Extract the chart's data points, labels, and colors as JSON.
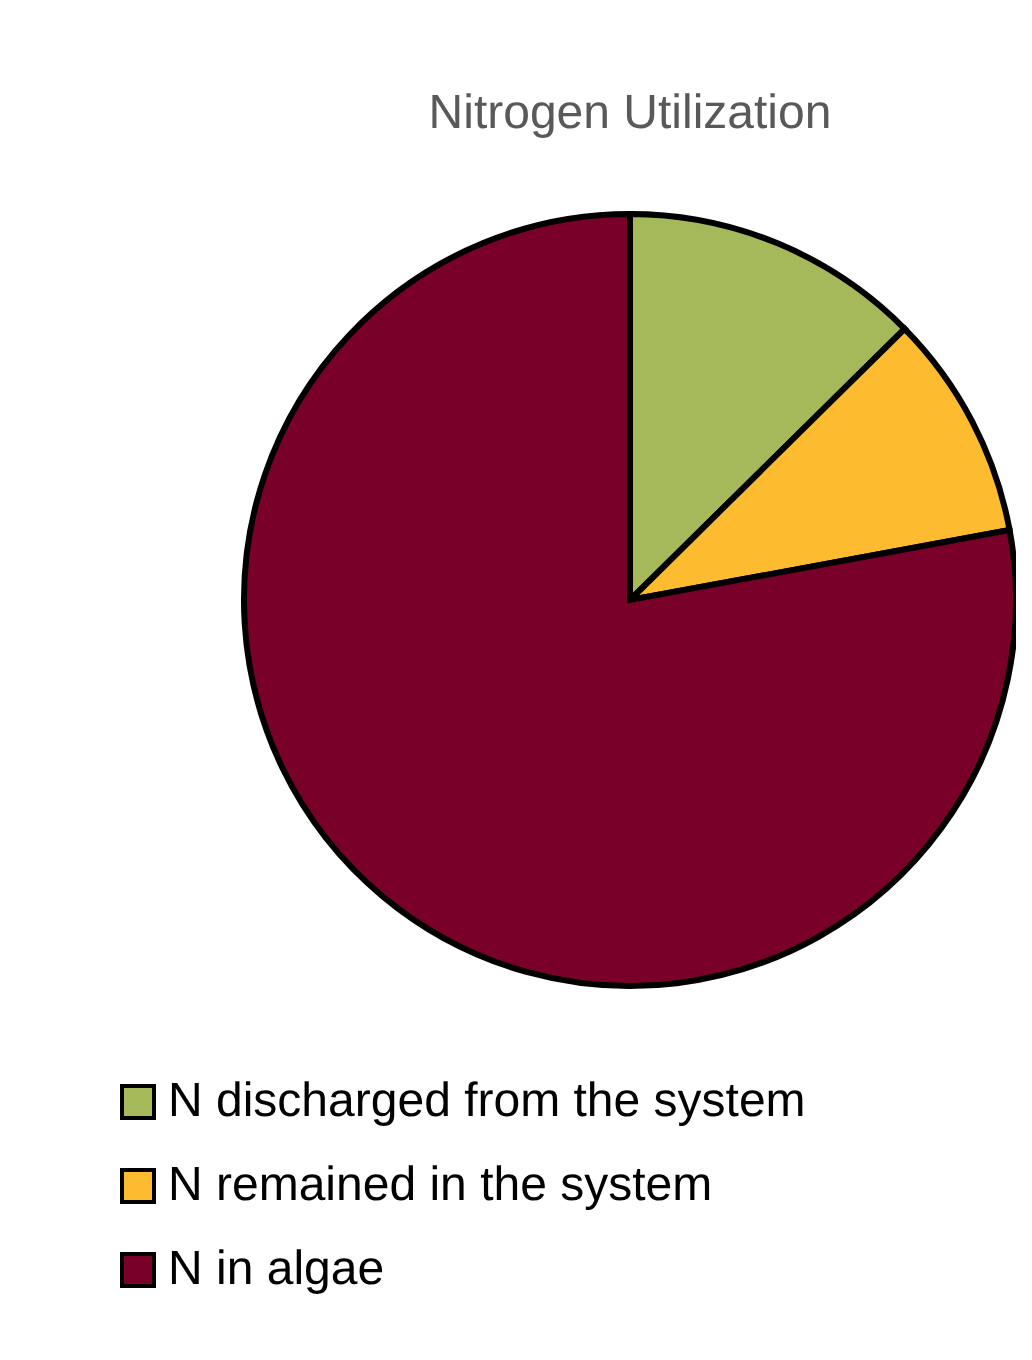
{
  "chart_data": {
    "type": "pie",
    "title": "Nitrogen Utilization",
    "categories": [
      "N discharged from the system",
      "N remained in the system",
      "N in algae"
    ],
    "values": [
      12.6,
      9.5,
      77.9
    ],
    "colors": [
      "#a5b95a",
      "#fdbb30",
      "#780029"
    ],
    "legend": "bottom"
  }
}
